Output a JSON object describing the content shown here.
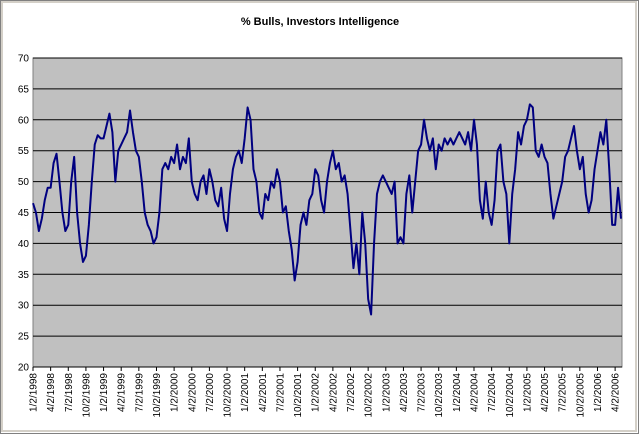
{
  "chart_data": {
    "type": "line",
    "title": "% Bulls, Investors Intelligence",
    "categories": [
      "1/2/1998",
      null,
      null,
      null,
      null,
      null,
      "4/2/1998",
      null,
      null,
      null,
      null,
      null,
      "7/2/1998",
      null,
      null,
      null,
      null,
      null,
      "10/2/1998",
      null,
      null,
      null,
      null,
      null,
      "1/2/1999",
      null,
      null,
      null,
      null,
      null,
      "4/2/1999",
      null,
      null,
      null,
      null,
      null,
      "7/2/1999",
      null,
      null,
      null,
      null,
      null,
      "10/2/1999",
      null,
      null,
      null,
      null,
      null,
      "1/2/2000",
      null,
      null,
      null,
      null,
      null,
      "4/2/2000",
      null,
      null,
      null,
      null,
      null,
      "7/2/2000",
      null,
      null,
      null,
      null,
      null,
      "10/2/2000",
      null,
      null,
      null,
      null,
      null,
      "1/2/2001",
      null,
      null,
      null,
      null,
      null,
      "4/2/2001",
      null,
      null,
      null,
      null,
      null,
      "7/2/2001",
      null,
      null,
      null,
      null,
      null,
      "10/2/2001",
      null,
      null,
      null,
      null,
      null,
      "1/2/2002",
      null,
      null,
      null,
      null,
      null,
      "4/2/2002",
      null,
      null,
      null,
      null,
      null,
      "7/2/2002",
      null,
      null,
      null,
      null,
      null,
      "10/2/2002",
      null,
      null,
      null,
      null,
      null,
      "1/2/2003",
      null,
      null,
      null,
      null,
      null,
      "4/2/2003",
      null,
      null,
      null,
      null,
      null,
      "7/2/2003",
      null,
      null,
      null,
      null,
      null,
      "10/2/2003",
      null,
      null,
      null,
      null,
      null,
      "1/2/2004",
      null,
      null,
      null,
      null,
      null,
      "4/2/2004",
      null,
      null,
      null,
      null,
      null,
      "7/2/2004",
      null,
      null,
      null,
      null,
      null,
      "10/2/2004",
      null,
      null,
      null,
      null,
      null,
      "1/2/2005",
      null,
      null,
      null,
      null,
      null,
      "4/2/2005",
      null,
      null,
      null,
      null,
      null,
      "7/2/2005",
      null,
      null,
      null,
      null,
      null,
      "10/2/2005",
      null,
      null,
      null,
      null,
      null,
      "1/2/2006",
      null,
      null,
      null,
      null,
      null,
      "4/2/2006",
      null,
      null
    ],
    "values": [
      46.5,
      45,
      42,
      44,
      47,
      49,
      49,
      53,
      54.5,
      50,
      45,
      42,
      43,
      50,
      54,
      45,
      40,
      37,
      38,
      43,
      50,
      56,
      57.5,
      57,
      57,
      59,
      61,
      58,
      50,
      55,
      56,
      57,
      58,
      61.5,
      58,
      55,
      54,
      50,
      45,
      43,
      42,
      40,
      41,
      45,
      52,
      53,
      52,
      54,
      53,
      56,
      52,
      54,
      53,
      57,
      50,
      48,
      47,
      50,
      51,
      48,
      52,
      50,
      47,
      46,
      49,
      44,
      42,
      48,
      52,
      54,
      55,
      53,
      57,
      62,
      60,
      52,
      50,
      45,
      44,
      48,
      47,
      50,
      49,
      52,
      50,
      45,
      46,
      42,
      39,
      34,
      37,
      43,
      45,
      43,
      47,
      48,
      52,
      51,
      47,
      45,
      50,
      53,
      55,
      52,
      53,
      50,
      51,
      48,
      42,
      36,
      40,
      35,
      45,
      40,
      31,
      28.5,
      40,
      48,
      50,
      51,
      50,
      49,
      48,
      50,
      40,
      41,
      40,
      48,
      51,
      45,
      50,
      55,
      56,
      60,
      57,
      55,
      57,
      52,
      56,
      55,
      57,
      56,
      57,
      56,
      57,
      58,
      57,
      56,
      58,
      55,
      60,
      56,
      47,
      44,
      50,
      45,
      43,
      47,
      55,
      56,
      50,
      48,
      40,
      48,
      52,
      58,
      56,
      59,
      60,
      62.5,
      62,
      55,
      54,
      56,
      54,
      53,
      48,
      44,
      46,
      48,
      50,
      54,
      55,
      57,
      59,
      55,
      52,
      54,
      48,
      45,
      47,
      52,
      55,
      58,
      56,
      60,
      52,
      43,
      43,
      49,
      44
    ],
    "color": "#000080",
    "ylim": [
      20,
      70
    ],
    "yticks": [
      20,
      25,
      30,
      35,
      40,
      45,
      50,
      55,
      60,
      65,
      70
    ],
    "grid": true
  }
}
